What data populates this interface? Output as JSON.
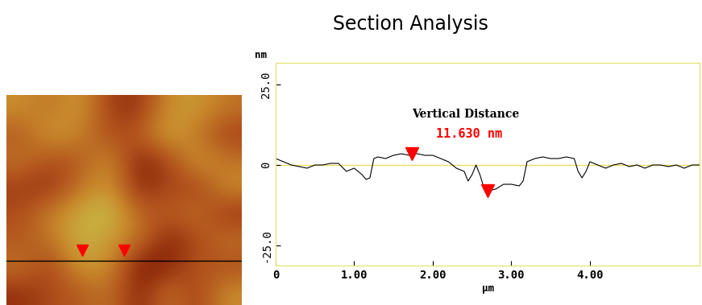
{
  "chart_data": [
    {
      "type": "heatmap",
      "cells": [
        [
          2,
          0,
          3,
          -4,
          -5,
          2,
          3,
          0
        ],
        [
          -2,
          3,
          1,
          -3,
          -2,
          4,
          0,
          -4
        ],
        [
          0,
          -3,
          -2,
          2,
          -6,
          -4,
          3,
          0
        ],
        [
          -4,
          -5,
          0,
          3,
          -6,
          -3,
          -4,
          2
        ],
        [
          -3,
          1,
          4,
          6,
          -1,
          -2,
          0,
          -5
        ],
        [
          -2,
          0,
          5,
          3,
          0,
          -6,
          -3,
          0
        ],
        [
          0,
          -4,
          3,
          2,
          -7,
          -6,
          -2,
          -3
        ],
        [
          -5,
          -3,
          -2,
          0,
          -6,
          0,
          -4,
          2
        ]
      ],
      "tick_labels": false
    },
    {
      "type": "line",
      "title": "Section Analysis",
      "x_label": "μm",
      "y_label": "nm",
      "x": [
        0,
        0.1,
        0.2,
        0.3,
        0.4,
        0.5,
        0.6,
        0.7,
        0.8,
        0.9,
        1.0,
        1.1,
        1.15,
        1.2,
        1.25,
        1.3,
        1.4,
        1.5,
        1.6,
        1.7,
        1.73,
        1.8,
        1.9,
        2.0,
        2.1,
        2.2,
        2.3,
        2.4,
        2.45,
        2.5,
        2.55,
        2.6,
        2.65,
        2.7,
        2.8,
        2.9,
        3.0,
        3.1,
        3.15,
        3.2,
        3.3,
        3.4,
        3.5,
        3.6,
        3.7,
        3.8,
        3.85,
        3.9,
        3.95,
        4.0,
        4.1,
        4.2,
        4.3,
        4.4,
        4.5,
        4.6,
        4.7,
        4.8,
        4.9,
        5.0,
        5.1,
        5.2,
        5.3,
        5.4
      ],
      "values": [
        2,
        1,
        0,
        -0.5,
        -1,
        0,
        0,
        0.5,
        0.5,
        -2,
        -1,
        -3,
        -4.5,
        -4,
        2,
        2.5,
        2,
        3,
        3.5,
        3,
        3.6,
        3.5,
        3,
        3,
        2,
        1,
        -1,
        -2,
        -5,
        -3,
        0,
        -3,
        -7,
        -8.03,
        -7.5,
        -6,
        -6,
        -6.5,
        -5,
        1,
        2,
        2.5,
        2,
        2,
        2.5,
        2,
        -2,
        -4,
        -2,
        1,
        0,
        -1,
        0,
        0.5,
        -0.5,
        0,
        -1,
        0,
        0,
        -0.5,
        0,
        -1,
        0,
        0
      ],
      "color": "#000000",
      "xlim": [
        0,
        5.4
      ],
      "ylim": [
        -31.25,
        31.75
      ],
      "xticks": [
        0,
        {
          "value": 1,
          "label": "1.00"
        },
        {
          "value": 2,
          "label": "2.00"
        },
        {
          "value": 3,
          "label": "3.00"
        },
        {
          "value": 4,
          "label": "4.00"
        }
      ],
      "yticks": [
        {
          "value": -25,
          "label": "-25.0"
        },
        0,
        {
          "value": 25,
          "label": "25.0"
        }
      ],
      "grid": false,
      "cursors": [
        {
          "x": 1.73,
          "y": 3.6
        },
        {
          "x": 2.7,
          "y": -8.03
        }
      ],
      "annotations": [
        "Vertical Distance",
        "11.630 nm"
      ]
    }
  ]
}
